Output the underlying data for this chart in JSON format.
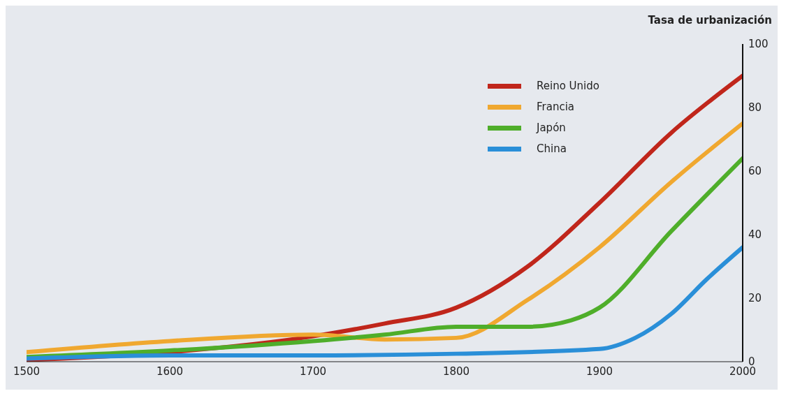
{
  "chart_data": {
    "type": "line",
    "ylabel": "Tasa de urbanización",
    "xlim": [
      1500,
      2000
    ],
    "xticks": [
      1500,
      1600,
      1700,
      1800,
      1900,
      2000
    ],
    "ylim": [
      0,
      100
    ],
    "yticks": [
      0,
      20,
      40,
      60,
      80,
      100
    ],
    "grid": false,
    "legend": "top right",
    "marker": "none",
    "line_style": "solid",
    "series": [
      {
        "name": "Reino Unido",
        "color": "#c0261b",
        "x": [
          1500,
          1600,
          1700,
          1750,
          1800,
          1850,
          1900,
          1950,
          2000
        ],
        "values": [
          0.5,
          3,
          8,
          12,
          17,
          30,
          50,
          72,
          90
        ]
      },
      {
        "name": "Francia",
        "color": "#f0a830",
        "x": [
          1500,
          1600,
          1700,
          1750,
          1800,
          1850,
          1900,
          1950,
          2000
        ],
        "values": [
          3,
          6.5,
          8.5,
          7,
          7.5,
          19.5,
          36,
          56.5,
          75
        ]
      },
      {
        "name": "Japón",
        "color": "#4fae2a",
        "x": [
          1500,
          1600,
          1700,
          1750,
          1800,
          1850,
          1880,
          1900,
          1950,
          2000
        ],
        "values": [
          1.5,
          3.5,
          6.5,
          8.5,
          11,
          11,
          13,
          17,
          41,
          64
        ]
      },
      {
        "name": "China",
        "color": "#2a8fd8",
        "x": [
          1500,
          1600,
          1700,
          1800,
          1900,
          1925,
          1950,
          1975,
          2000
        ],
        "values": [
          1,
          2,
          2,
          2.5,
          4,
          7.5,
          15,
          26,
          36
        ]
      }
    ]
  }
}
